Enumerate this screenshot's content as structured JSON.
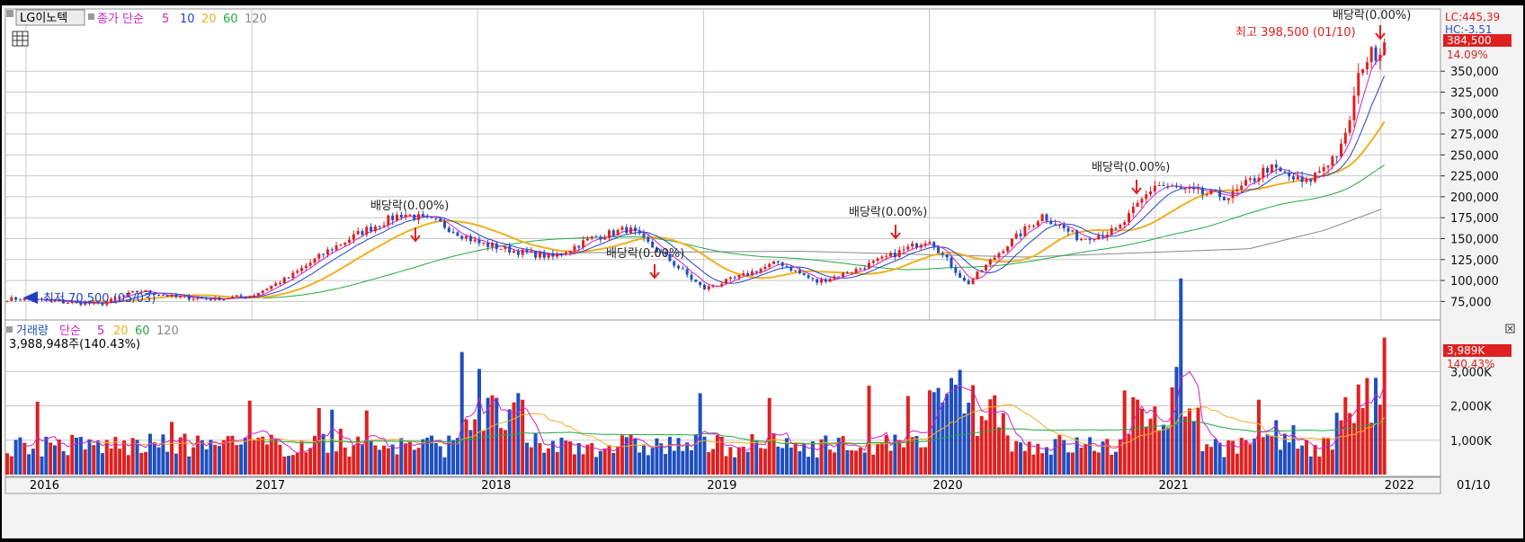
{
  "price_panel": {
    "symbol": "LG이노텍",
    "ma_label": "종가 단순",
    "ma_periods": [
      "5",
      "10",
      "20",
      "60",
      "120"
    ],
    "ma_colors": [
      "#cc22cc",
      "#2244cc",
      "#f0b020",
      "#22aa44",
      "#888888"
    ],
    "axis_ticks": [
      "350,000",
      "325,000",
      "300,000",
      "275,000",
      "250,000",
      "225,000",
      "200,000",
      "175,000",
      "150,000",
      "125,000",
      "100,000",
      "75,000"
    ],
    "lc_label": "LC:445,39",
    "hc_label": "HC:-3.51",
    "last_price": "384,500",
    "last_change": "14.09%",
    "high_note": "최고 398,500 (01/10)",
    "low_note": "최저 70,500 (05/03)",
    "dividend_labels": [
      "배당락(0.00%)",
      "배당락(0.00%)",
      "배당락(0.00%)",
      "배당락(0.00%)",
      "배당락(0.00%)"
    ]
  },
  "volume_panel": {
    "title": "거래량",
    "ma_label": "단순",
    "ma_periods": [
      "5",
      "20",
      "60",
      "120"
    ],
    "ma_colors": [
      "#cc22cc",
      "#f0b020",
      "#22aa44",
      "#888888"
    ],
    "current": "3,988,948주(140.43%)",
    "axis_ticks": [
      "3,000K",
      "2,000K",
      "1,000K"
    ],
    "last_volume": "3,989K",
    "last_pct": "140.43%"
  },
  "x_axis": {
    "labels": [
      "2016",
      "2017",
      "2018",
      "2019",
      "2020",
      "2021",
      "2022"
    ],
    "right_label": "01/10"
  },
  "colors": {
    "up": "#e02020",
    "down": "#1f4fc0",
    "accent": "#e02020",
    "grid": "#c8c8c8"
  },
  "chart_data": {
    "type": "candlestick",
    "interval": "weekly",
    "x_range": [
      "2015-12",
      "2022-01-10"
    ],
    "ylim": [
      55000,
      420000
    ],
    "volume_ylim": [
      0,
      4500000
    ],
    "price_series": [
      {
        "date": "2016-01",
        "close": 78000
      },
      {
        "date": "2016-03",
        "close": 74000
      },
      {
        "date": "2016-05",
        "close": 72000
      },
      {
        "date": "2016-07",
        "close": 88000
      },
      {
        "date": "2016-09",
        "close": 80000
      },
      {
        "date": "2016-11",
        "close": 78000
      },
      {
        "date": "2017-01",
        "close": 82000
      },
      {
        "date": "2017-03",
        "close": 104000
      },
      {
        "date": "2017-05",
        "close": 135000
      },
      {
        "date": "2017-07",
        "close": 160000
      },
      {
        "date": "2017-09",
        "close": 180000
      },
      {
        "date": "2017-11",
        "close": 168000
      },
      {
        "date": "2018-01",
        "close": 145000
      },
      {
        "date": "2018-03",
        "close": 135000
      },
      {
        "date": "2018-05",
        "close": 128000
      },
      {
        "date": "2018-07",
        "close": 150000
      },
      {
        "date": "2018-09",
        "close": 162000
      },
      {
        "date": "2018-11",
        "close": 128000
      },
      {
        "date": "2019-01",
        "close": 90000
      },
      {
        "date": "2019-03",
        "close": 105000
      },
      {
        "date": "2019-05",
        "close": 122000
      },
      {
        "date": "2019-07",
        "close": 98000
      },
      {
        "date": "2019-09",
        "close": 112000
      },
      {
        "date": "2019-11",
        "close": 130000
      },
      {
        "date": "2020-01",
        "close": 150000
      },
      {
        "date": "2020-03",
        "close": 95000
      },
      {
        "date": "2020-05",
        "close": 140000
      },
      {
        "date": "2020-07",
        "close": 178000
      },
      {
        "date": "2020-09",
        "close": 150000
      },
      {
        "date": "2020-11",
        "close": 160000
      },
      {
        "date": "2021-01",
        "close": 215000
      },
      {
        "date": "2021-03",
        "close": 205000
      },
      {
        "date": "2021-05",
        "close": 200000
      },
      {
        "date": "2021-07",
        "close": 235000
      },
      {
        "date": "2021-09",
        "close": 215000
      },
      {
        "date": "2021-11",
        "close": 260000
      },
      {
        "date": "2021-12",
        "close": 360000
      },
      {
        "date": "2022-01-10",
        "close": 384500
      }
    ],
    "price_high": {
      "value": 398500,
      "date": "01/10"
    },
    "price_low": {
      "value": 70500,
      "date": "05/03"
    },
    "ma120_points": [
      {
        "date": "2018-06",
        "value": 133000
      },
      {
        "date": "2019-06",
        "value": 135000
      },
      {
        "date": "2020-06",
        "value": 128000
      },
      {
        "date": "2021-06",
        "value": 138000
      },
      {
        "date": "2021-10",
        "value": 160000
      },
      {
        "date": "2022-01",
        "value": 185000
      }
    ],
    "volume_last": 3988948
  }
}
